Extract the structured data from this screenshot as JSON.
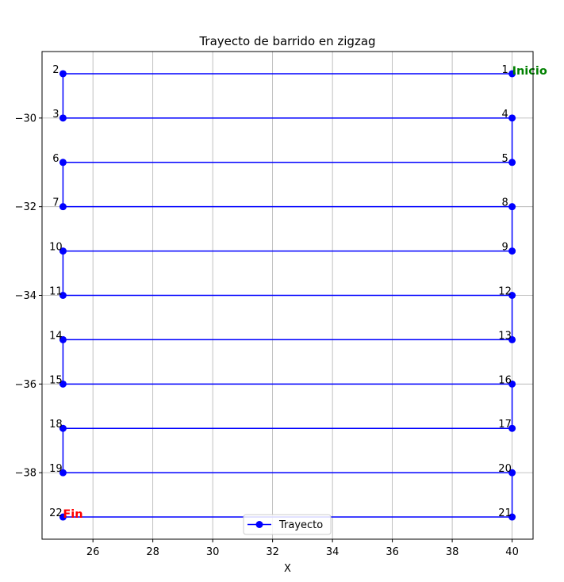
{
  "chart_data": {
    "type": "line",
    "title": "Trayecto de barrido en zigzag",
    "xlabel": "X",
    "ylabel": "",
    "xlim": [
      24.3,
      40.7
    ],
    "ylim": [
      -39.5,
      -28.5
    ],
    "xticks": [
      26,
      28,
      30,
      32,
      34,
      36,
      38,
      40
    ],
    "xtick_labels": [
      "26",
      "28",
      "30",
      "32",
      "34",
      "36",
      "38",
      "40"
    ],
    "yticks": [
      -30,
      -32,
      -34,
      -36,
      -38
    ],
    "ytick_labels": [
      "−30",
      "−32",
      "−34",
      "−36",
      "−38"
    ],
    "grid": true,
    "legend": {
      "position": "bottom-center",
      "entries": [
        "Trayecto"
      ]
    },
    "series": [
      {
        "name": "Trayecto",
        "color": "#0000ff",
        "marker": "circle",
        "x": [
          40,
          25,
          25,
          40,
          40,
          25,
          25,
          40,
          40,
          25,
          25,
          40,
          40,
          25,
          25,
          40,
          40,
          25,
          25,
          40,
          40,
          25
        ],
        "y": [
          -29,
          -29,
          -30,
          -30,
          -31,
          -31,
          -32,
          -32,
          -33,
          -33,
          -34,
          -34,
          -35,
          -35,
          -36,
          -36,
          -37,
          -37,
          -38,
          -38,
          -39,
          -39
        ],
        "point_labels": [
          "1",
          "2",
          "3",
          "4",
          "5",
          "6",
          "7",
          "8",
          "9",
          "10",
          "11",
          "12",
          "13",
          "14",
          "15",
          "16",
          "17",
          "18",
          "19",
          "20",
          "21",
          "22"
        ]
      }
    ],
    "annotations": [
      {
        "text": "Inicio",
        "x": 40,
        "y": -29,
        "color": "#008000"
      },
      {
        "text": "Fin",
        "x": 25,
        "y": -39,
        "color": "#ff0000"
      }
    ]
  }
}
